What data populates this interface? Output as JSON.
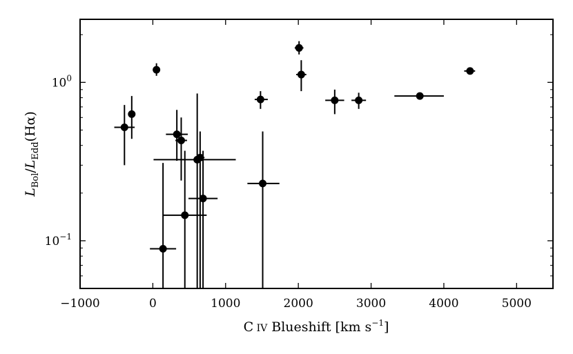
{
  "chart_data": {
    "type": "scatter",
    "xlabel": "C IV Blueshift [km s⁻¹]",
    "ylabel": "L_Bol/L_Edd(Hα)",
    "x_scale": "linear",
    "y_scale": "log",
    "xlim": [
      -1000,
      5500
    ],
    "ylim": [
      0.05,
      2.5
    ],
    "x_ticks": [
      -1000,
      0,
      1000,
      2000,
      3000,
      4000,
      5000
    ],
    "x_tick_labels": [
      "−1000",
      "0",
      "1000",
      "2000",
      "3000",
      "4000",
      "5000"
    ],
    "y_ticks": [
      0.1,
      1.0
    ],
    "grid": false,
    "legend": "none",
    "marker_color": "#000000",
    "points": [
      {
        "x": -390,
        "y": 0.52,
        "xerr": [
          140,
          140
        ],
        "yerr": [
          0.3,
          0.72
        ]
      },
      {
        "x": -290,
        "y": 0.63,
        "xerr": [
          0,
          0
        ],
        "yerr": [
          0.44,
          0.82
        ]
      },
      {
        "x": 50,
        "y": 1.2,
        "xerr": [
          0,
          0
        ],
        "yerr": [
          1.1,
          1.32
        ]
      },
      {
        "x": 140,
        "y": 0.089,
        "xerr": [
          180,
          180
        ],
        "yerr": [
          0.05,
          0.31
        ]
      },
      {
        "x": 330,
        "y": 0.47,
        "xerr": [
          150,
          150
        ],
        "yerr": [
          0.32,
          0.67
        ]
      },
      {
        "x": 390,
        "y": 0.43,
        "xerr": [
          80,
          80
        ],
        "yerr": [
          0.24,
          0.6
        ]
      },
      {
        "x": 440,
        "y": 0.145,
        "xerr": [
          300,
          300
        ],
        "yerr": [
          0.05,
          0.37
        ]
      },
      {
        "x": 610,
        "y": 0.325,
        "xerr": [
          600,
          530
        ],
        "yerr": [
          0.05,
          0.85
        ]
      },
      {
        "x": 650,
        "y": 0.335,
        "xerr": [
          60,
          60
        ],
        "yerr": [
          0.05,
          0.49
        ]
      },
      {
        "x": 690,
        "y": 0.185,
        "xerr": [
          200,
          200
        ],
        "yerr": [
          0.05,
          0.37
        ]
      },
      {
        "x": 1480,
        "y": 0.78,
        "xerr": [
          80,
          100
        ],
        "yerr": [
          0.68,
          0.88
        ]
      },
      {
        "x": 1510,
        "y": 0.23,
        "xerr": [
          210,
          230
        ],
        "yerr": [
          0.05,
          0.49
        ]
      },
      {
        "x": 2010,
        "y": 1.65,
        "xerr": [
          60,
          60
        ],
        "yerr": [
          1.5,
          1.82
        ]
      },
      {
        "x": 2040,
        "y": 1.12,
        "xerr": [
          70,
          70
        ],
        "yerr": [
          0.88,
          1.38
        ]
      },
      {
        "x": 2500,
        "y": 0.77,
        "xerr": [
          130,
          130
        ],
        "yerr": [
          0.63,
          0.9
        ]
      },
      {
        "x": 2830,
        "y": 0.77,
        "xerr": [
          100,
          100
        ],
        "yerr": [
          0.68,
          0.86
        ]
      },
      {
        "x": 3670,
        "y": 0.82,
        "xerr": [
          350,
          330
        ],
        "yerr": [
          0.78,
          0.86
        ]
      },
      {
        "x": 4360,
        "y": 1.18,
        "xerr": [
          80,
          70
        ],
        "yerr": [
          1.13,
          1.23
        ]
      }
    ]
  }
}
